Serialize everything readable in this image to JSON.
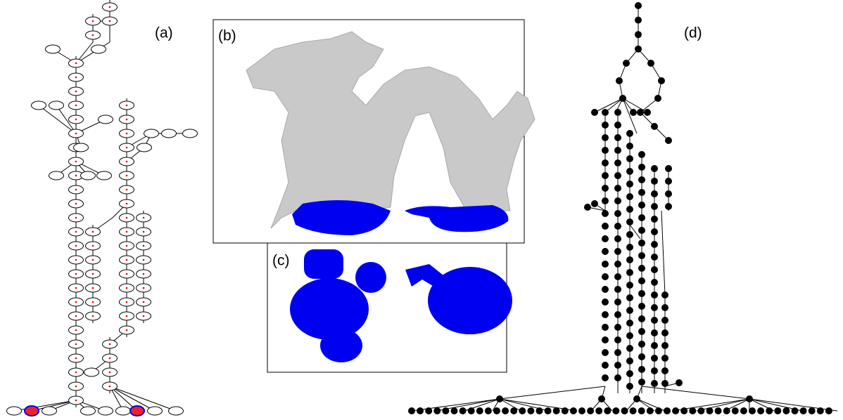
{
  "panels": {
    "a": {
      "label": "(a)"
    },
    "b": {
      "label": "(b)"
    },
    "c": {
      "label": "(c)"
    },
    "d": {
      "label": "(d)"
    }
  }
}
